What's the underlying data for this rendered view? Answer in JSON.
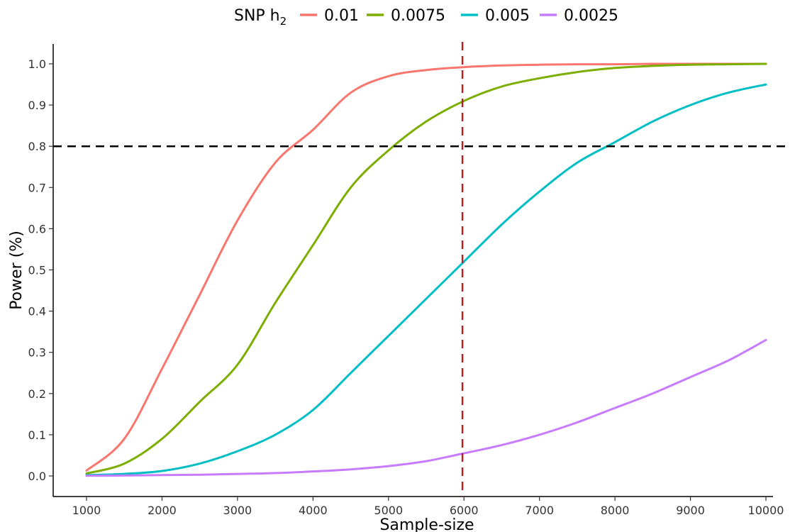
{
  "chart_data": {
    "type": "line",
    "xlabel": "Sample-size",
    "ylabel": "Power (%)",
    "xlim": [
      1000,
      10000
    ],
    "ylim": [
      0,
      1
    ],
    "x_ticks": [
      1000,
      2000,
      3000,
      4000,
      5000,
      6000,
      7000,
      8000,
      9000,
      10000
    ],
    "y_ticks": [
      "0.0",
      "0.1",
      "0.2",
      "0.3",
      "0.4",
      "0.5",
      "0.6",
      "0.7",
      "0.8",
      "0.9",
      "1.0"
    ],
    "grid": false,
    "legend": {
      "position": "top",
      "title_main": "SNP h",
      "title_sub": "2"
    },
    "x": [
      1000,
      1500,
      2000,
      2500,
      3000,
      3500,
      4000,
      4500,
      5000,
      5500,
      6000,
      6500,
      7000,
      7500,
      8000,
      8500,
      9000,
      9500,
      10000
    ],
    "series": [
      {
        "name": "0.01",
        "color": "#F8766D",
        "values": [
          0.013,
          0.09,
          0.26,
          0.44,
          0.62,
          0.76,
          0.84,
          0.93,
          0.97,
          0.985,
          0.992,
          0.996,
          0.998,
          0.999,
          0.999,
          1.0,
          1.0,
          1.0,
          1.0
        ]
      },
      {
        "name": "0.0075",
        "color": "#7CAE00",
        "values": [
          0.006,
          0.03,
          0.09,
          0.18,
          0.27,
          0.42,
          0.56,
          0.7,
          0.79,
          0.86,
          0.91,
          0.945,
          0.965,
          0.98,
          0.99,
          0.995,
          0.998,
          0.999,
          1.0
        ]
      },
      {
        "name": "0.005",
        "color": "#00BFC4",
        "values": [
          0.002,
          0.005,
          0.012,
          0.03,
          0.06,
          0.1,
          0.16,
          0.25,
          0.34,
          0.43,
          0.52,
          0.61,
          0.69,
          0.76,
          0.81,
          0.86,
          0.9,
          0.93,
          0.95
        ]
      },
      {
        "name": "0.0025",
        "color": "#C77CFF",
        "values": [
          0.0005,
          0.001,
          0.002,
          0.003,
          0.005,
          0.007,
          0.011,
          0.016,
          0.024,
          0.036,
          0.055,
          0.075,
          0.1,
          0.13,
          0.165,
          0.2,
          0.24,
          0.28,
          0.33
        ]
      }
    ],
    "reference_lines": [
      {
        "orientation": "horizontal",
        "value": 0.8,
        "color": "#000000",
        "style": "dashed"
      },
      {
        "orientation": "vertical",
        "value": 5980,
        "color": "#B22222",
        "style": "dashed"
      }
    ]
  }
}
